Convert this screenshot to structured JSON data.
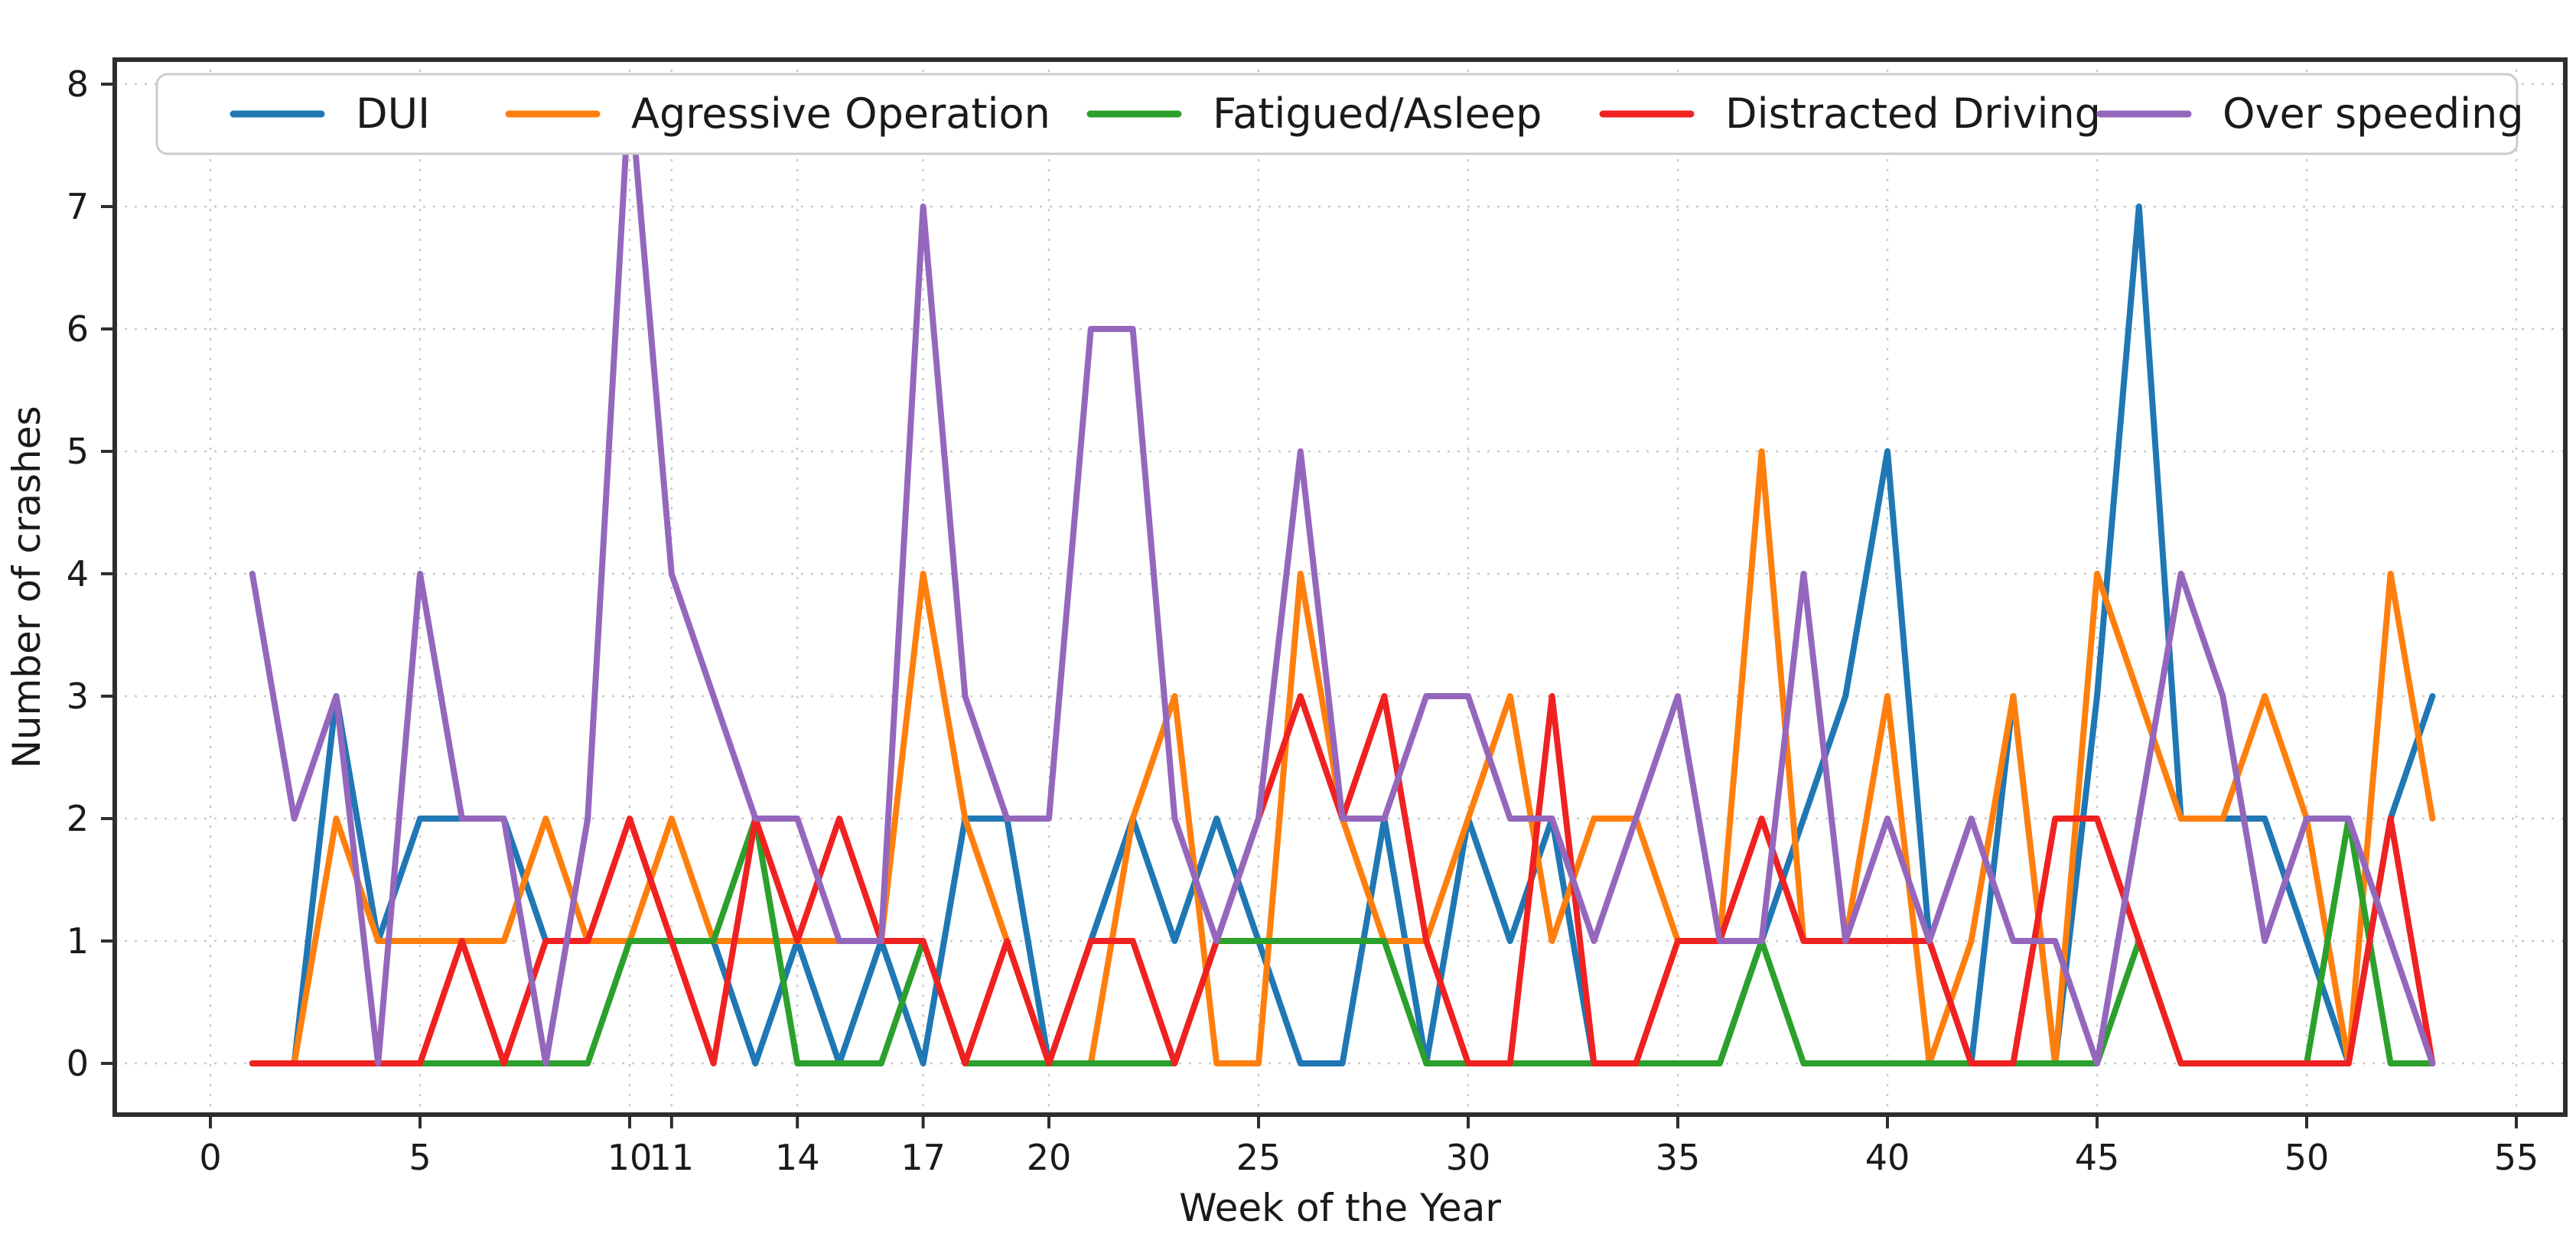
{
  "chart_data": {
    "type": "line",
    "title": "",
    "xlabel": "Week of the Year",
    "ylabel": "Number of crashes",
    "x_ticks": [
      0,
      5,
      10,
      11,
      14,
      17,
      20,
      25,
      30,
      35,
      40,
      45,
      50,
      55
    ],
    "y_ticks": [
      0,
      1,
      2,
      3,
      4,
      5,
      6,
      7,
      8
    ],
    "xlim": [
      -2.3,
      56.6
    ],
    "ylim": [
      -0.42,
      8.2
    ],
    "grid": "dotted both axes",
    "legend_position": "top inside, horizontal row",
    "weeks": [
      1,
      2,
      3,
      4,
      5,
      6,
      7,
      8,
      9,
      10,
      11,
      12,
      13,
      14,
      15,
      16,
      17,
      18,
      19,
      20,
      21,
      22,
      23,
      24,
      25,
      26,
      27,
      28,
      29,
      30,
      31,
      32,
      33,
      34,
      35,
      36,
      37,
      38,
      39,
      40,
      41,
      42,
      43,
      44,
      45,
      46,
      47,
      48,
      49,
      50,
      51,
      52,
      53
    ],
    "series": [
      {
        "name": "DUI",
        "color": "#1f77b4",
        "values": [
          0,
          0,
          3,
          1,
          2,
          2,
          2,
          1,
          1,
          1,
          1,
          1,
          0,
          1,
          0,
          1,
          0,
          2,
          2,
          0,
          1,
          2,
          1,
          2,
          1,
          0,
          0,
          2,
          0,
          2,
          1,
          2,
          0,
          0,
          0,
          0,
          1,
          2,
          3,
          5,
          1,
          0,
          3,
          0,
          3,
          7,
          2,
          2,
          2,
          1,
          0,
          2,
          3
        ]
      },
      {
        "name": "Agressive Operation",
        "color": "#ff7f0e",
        "values": [
          0,
          0,
          2,
          1,
          1,
          1,
          1,
          2,
          1,
          1,
          2,
          1,
          1,
          1,
          1,
          1,
          4,
          2,
          1,
          0,
          0,
          2,
          3,
          0,
          0,
          4,
          2,
          1,
          1,
          2,
          3,
          1,
          2,
          2,
          1,
          1,
          5,
          1,
          1,
          3,
          0,
          1,
          3,
          0,
          4,
          3,
          2,
          2,
          3,
          2,
          0,
          4,
          2
        ]
      },
      {
        "name": "Fatigued/Asleep",
        "color": "#2ca02c",
        "values": [
          0,
          0,
          0,
          0,
          0,
          0,
          0,
          0,
          0,
          1,
          1,
          1,
          2,
          0,
          0,
          0,
          1,
          0,
          0,
          0,
          0,
          0,
          0,
          1,
          1,
          1,
          1,
          1,
          0,
          0,
          0,
          0,
          0,
          0,
          0,
          0,
          1,
          0,
          0,
          0,
          0,
          0,
          0,
          0,
          0,
          1,
          0,
          0,
          0,
          0,
          2,
          0,
          0
        ]
      },
      {
        "name": "Distracted Driving",
        "color": "#ef2121",
        "values": [
          0,
          0,
          0,
          0,
          0,
          1,
          0,
          1,
          1,
          2,
          1,
          0,
          2,
          1,
          2,
          1,
          1,
          0,
          1,
          0,
          1,
          1,
          0,
          1,
          2,
          3,
          2,
          3,
          1,
          0,
          0,
          3,
          0,
          0,
          1,
          1,
          2,
          1,
          1,
          1,
          1,
          0,
          0,
          2,
          2,
          1,
          0,
          0,
          0,
          0,
          0,
          2,
          0
        ]
      },
      {
        "name": "Over speeding",
        "color": "#9467bd",
        "values": [
          4,
          2,
          3,
          0,
          4,
          2,
          2,
          0,
          2,
          8,
          4,
          3,
          2,
          2,
          1,
          1,
          7,
          3,
          2,
          2,
          6,
          6,
          2,
          1,
          2,
          5,
          2,
          2,
          3,
          3,
          2,
          2,
          1,
          2,
          3,
          1,
          1,
          4,
          1,
          2,
          1,
          2,
          1,
          1,
          0,
          2,
          4,
          3,
          1,
          2,
          2,
          1,
          0
        ]
      }
    ]
  },
  "layout_colors": {
    "grid": "#c9c9c9",
    "spine": "#2e2e2e",
    "tick": "#2e2e2e",
    "legend_border": "#cccccc"
  },
  "labels": {
    "xlabel": "Week of the Year",
    "ylabel": "Number of crashes"
  }
}
